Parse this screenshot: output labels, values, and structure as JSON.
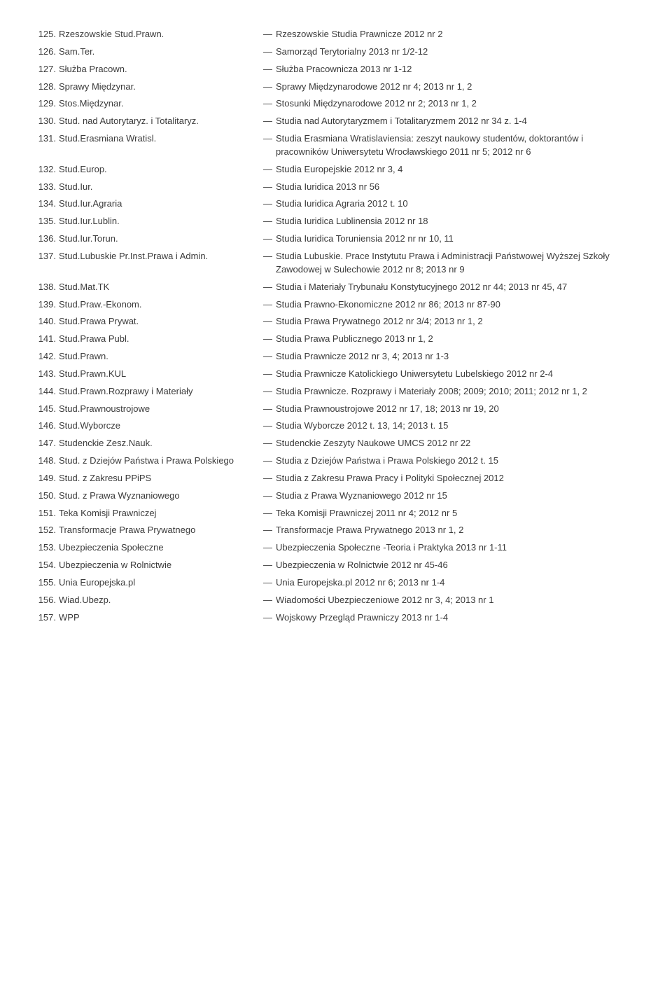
{
  "entries": [
    {
      "num": "125.",
      "abbr": "Rzeszowskie Stud.Prawn.",
      "full": "Rzeszowskie Studia Prawnicze 2012 nr 2"
    },
    {
      "num": "126.",
      "abbr": "Sam.Ter.",
      "full": "Samorząd Terytorialny 2013 nr 1/2-12"
    },
    {
      "num": "127.",
      "abbr": "Służba Pracown.",
      "full": "Służba Pracownicza 2013 nr 1-12"
    },
    {
      "num": "128.",
      "abbr": "Sprawy Międzynar.",
      "full": "Sprawy Międzynarodowe 2012 nr 4; 2013 nr 1, 2"
    },
    {
      "num": "129.",
      "abbr": "Stos.Międzynar.",
      "full": "Stosunki Międzynarodowe 2012 nr 2; 2013 nr 1, 2"
    },
    {
      "num": "130.",
      "abbr": "Stud. nad Autorytaryz. i Totalitaryz.",
      "full": "Studia nad Autorytaryzmem i Totalitaryzmem 2012 nr 34 z. 1-4"
    },
    {
      "num": "131.",
      "abbr": "Stud.Erasmiana Wratisl.",
      "full": "Studia Erasmiana Wratislaviensia: zeszyt naukowy studentów, doktorantów i pracowników Uniwersytetu Wrocławskiego 2011 nr 5; 2012 nr 6"
    },
    {
      "num": "132.",
      "abbr": "Stud.Europ.",
      "full": "Studia Europejskie 2012 nr 3, 4"
    },
    {
      "num": "133.",
      "abbr": "Stud.Iur.",
      "full": "Studia Iuridica 2013 nr 56"
    },
    {
      "num": "134.",
      "abbr": "Stud.Iur.Agraria",
      "full": "Studia Iuridica Agraria 2012 t. 10"
    },
    {
      "num": "135.",
      "abbr": "Stud.Iur.Lublin.",
      "full": "Studia Iuridica Lublinensia 2012 nr 18"
    },
    {
      "num": "136.",
      "abbr": "Stud.Iur.Torun.",
      "full": "Studia Iuridica Toruniensia 2012 nr nr 10, 11"
    },
    {
      "num": "137.",
      "abbr": "Stud.Lubuskie Pr.Inst.Prawa i Admin.",
      "full": "Studia Lubuskie. Prace Instytutu Prawa i Administracji Państwowej Wyższej Szkoły Zawodowej w Sulechowie 2012 nr 8; 2013 nr 9"
    },
    {
      "num": "138.",
      "abbr": "Stud.Mat.TK",
      "full": "Studia i Materiały Trybunału Konstytucyjnego 2012 nr 44; 2013 nr 45, 47"
    },
    {
      "num": "139.",
      "abbr": "Stud.Praw.-Ekonom.",
      "full": "Studia Prawno-Ekonomiczne 2012 nr 86; 2013 nr 87-90"
    },
    {
      "num": "140.",
      "abbr": "Stud.Prawa Prywat.",
      "full": "Studia Prawa Prywatnego 2012 nr 3/4; 2013 nr 1, 2"
    },
    {
      "num": "141.",
      "abbr": "Stud.Prawa Publ.",
      "full": "Studia Prawa Publicznego 2013 nr 1, 2"
    },
    {
      "num": "142.",
      "abbr": "Stud.Prawn.",
      "full": "Studia Prawnicze 2012 nr 3, 4; 2013 nr 1-3"
    },
    {
      "num": "143.",
      "abbr": "Stud.Prawn.KUL",
      "full": "Studia Prawnicze Katolickiego Uniwersytetu Lubelskiego 2012 nr 2-4"
    },
    {
      "num": "144.",
      "abbr": "Stud.Prawn.Rozprawy i Materiały",
      "full": "Studia Prawnicze. Rozprawy i Materiały 2008; 2009; 2010; 2011; 2012 nr 1, 2"
    },
    {
      "num": "145.",
      "abbr": "Stud.Prawnoustrojowe",
      "full": "Studia Prawnoustrojowe 2012 nr 17, 18; 2013 nr 19, 20"
    },
    {
      "num": "146.",
      "abbr": "Stud.Wyborcze",
      "full": "Studia Wyborcze 2012 t. 13, 14; 2013 t. 15"
    },
    {
      "num": "147.",
      "abbr": "Studenckie Zesz.Nauk.",
      "full": "Studenckie Zeszyty Naukowe UMCS 2012 nr 22"
    },
    {
      "num": "148.",
      "abbr": "Stud. z Dziejów Państwa i Prawa Polskiego",
      "full": "Studia z Dziejów Państwa i Prawa Polskiego 2012 t. 15"
    },
    {
      "num": "149.",
      "abbr": "Stud. z Zakresu PPiPS",
      "full": "Studia z Zakresu Prawa Pracy i Polityki Społecznej 2012"
    },
    {
      "num": "150.",
      "abbr": "Stud. z Prawa Wyznaniowego",
      "full": "Studia z Prawa Wyznaniowego 2012 nr 15"
    },
    {
      "num": "151.",
      "abbr": "Teka Komisji Prawniczej",
      "full": "Teka Komisji Prawniczej 2011 nr 4; 2012 nr 5"
    },
    {
      "num": "152.",
      "abbr": "Transformacje Prawa Prywatnego",
      "full": "Transformacje Prawa Prywatnego 2013 nr 1, 2"
    },
    {
      "num": "153.",
      "abbr": "Ubezpieczenia Społeczne",
      "full": "Ubezpieczenia Społeczne -Teoria i Praktyka 2013 nr 1-11"
    },
    {
      "num": "154.",
      "abbr": "Ubezpieczenia w Rolnictwie",
      "full": "Ubezpieczenia w Rolnictwie 2012 nr 45-46"
    },
    {
      "num": "155.",
      "abbr": "Unia Europejska.pl",
      "full": "Unia Europejska.pl 2012 nr 6; 2013 nr 1-4"
    },
    {
      "num": "156.",
      "abbr": "Wiad.Ubezp.",
      "full": "Wiadomości Ubezpieczeniowe 2012 nr 3, 4; 2013 nr 1"
    },
    {
      "num": "157.",
      "abbr": "WPP",
      "full": "Wojskowy Przegląd Prawniczy 2013 nr 1-4"
    }
  ],
  "dash": "—"
}
